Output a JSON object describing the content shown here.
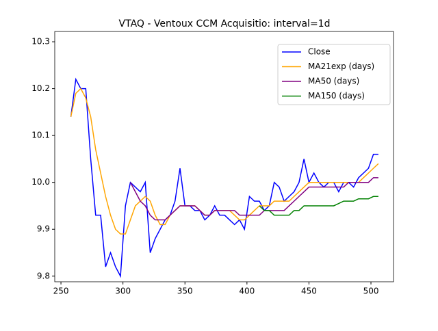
{
  "chart_data": {
    "type": "line",
    "title": "VTAQ - Ventoux CCM Acquisitio: interval=1d",
    "x": [
      258,
      262,
      266,
      270,
      274,
      278,
      282,
      286,
      290,
      294,
      298,
      302,
      306,
      310,
      314,
      318,
      322,
      326,
      330,
      334,
      338,
      342,
      346,
      350,
      354,
      358,
      362,
      366,
      370,
      374,
      378,
      382,
      386,
      390,
      394,
      398,
      402,
      406,
      410,
      414,
      418,
      422,
      426,
      430,
      434,
      438,
      442,
      446,
      450,
      454,
      458,
      462,
      466,
      470,
      474,
      478,
      482,
      486,
      490,
      494,
      498,
      502,
      506
    ],
    "series": [
      {
        "name": "Close",
        "color": "#0000ff",
        "values": [
          10.14,
          10.22,
          10.2,
          10.2,
          10.05,
          9.93,
          9.93,
          9.82,
          9.85,
          9.82,
          9.8,
          9.95,
          10.0,
          9.99,
          9.98,
          10.0,
          9.85,
          9.88,
          9.9,
          9.92,
          9.93,
          9.96,
          10.03,
          9.95,
          9.95,
          9.94,
          9.94,
          9.92,
          9.93,
          9.95,
          9.93,
          9.93,
          9.92,
          9.91,
          9.92,
          9.9,
          9.97,
          9.96,
          9.96,
          9.94,
          9.95,
          10.0,
          9.99,
          9.96,
          9.97,
          9.98,
          10.0,
          10.05,
          10.0,
          10.02,
          10.0,
          9.99,
          10.0,
          10.0,
          9.98,
          10.0,
          10.0,
          9.99,
          10.01,
          10.02,
          10.03,
          10.06,
          10.06
        ]
      },
      {
        "name": "MA21exp (days)",
        "color": "#ffa500",
        "values": [
          10.14,
          10.19,
          10.2,
          10.18,
          10.14,
          10.07,
          10.02,
          9.97,
          9.93,
          9.9,
          9.89,
          9.89,
          9.92,
          9.95,
          9.96,
          9.97,
          9.96,
          9.93,
          9.91,
          9.91,
          9.93,
          9.94,
          9.95,
          9.95,
          9.95,
          9.95,
          9.94,
          9.93,
          9.93,
          9.94,
          9.94,
          9.94,
          9.94,
          9.93,
          9.92,
          9.92,
          9.93,
          9.94,
          9.95,
          9.95,
          9.95,
          9.96,
          9.96,
          9.96,
          9.96,
          9.97,
          9.98,
          9.99,
          10.0,
          10.0,
          10.0,
          10.0,
          10.0,
          10.0,
          10.0,
          10.0,
          10.0,
          10.0,
          10.0,
          10.01,
          10.02,
          10.03,
          10.04
        ]
      },
      {
        "name": "MA50 (days)",
        "color": "#800080",
        "values": [
          null,
          null,
          null,
          null,
          null,
          null,
          null,
          null,
          null,
          null,
          null,
          null,
          10.0,
          9.98,
          9.96,
          9.95,
          9.93,
          9.92,
          9.92,
          9.92,
          9.93,
          9.94,
          9.95,
          9.95,
          9.95,
          9.95,
          9.94,
          9.93,
          9.93,
          9.94,
          9.94,
          9.94,
          9.94,
          9.94,
          9.93,
          9.93,
          9.93,
          9.93,
          9.93,
          9.94,
          9.94,
          9.94,
          9.94,
          9.94,
          9.95,
          9.96,
          9.97,
          9.98,
          9.99,
          9.99,
          9.99,
          9.99,
          9.99,
          9.99,
          9.99,
          9.99,
          10.0,
          10.0,
          10.0,
          10.0,
          10.0,
          10.01,
          10.01
        ]
      },
      {
        "name": "MA150 (days)",
        "color": "#008000",
        "values": [
          null,
          null,
          null,
          null,
          null,
          null,
          null,
          null,
          null,
          null,
          null,
          null,
          null,
          null,
          null,
          null,
          null,
          null,
          null,
          null,
          null,
          null,
          null,
          null,
          null,
          null,
          null,
          null,
          null,
          null,
          null,
          null,
          null,
          null,
          null,
          null,
          null,
          null,
          9.95,
          9.94,
          9.94,
          9.93,
          9.93,
          9.93,
          9.93,
          9.94,
          9.94,
          9.95,
          9.95,
          9.95,
          9.95,
          9.95,
          9.95,
          9.95,
          9.955,
          9.96,
          9.96,
          9.96,
          9.965,
          9.965,
          9.965,
          9.97,
          9.97
        ]
      }
    ],
    "xlim": [
      245.0,
      518.2
    ],
    "ylim": [
      9.788,
      10.322
    ],
    "xticks": [
      250,
      300,
      350,
      400,
      450,
      500
    ],
    "yticks": [
      9.8,
      9.9,
      {
        "value": 10,
        "label": "10.0"
      },
      10.1,
      10.2,
      10.3
    ],
    "legend": "upper right"
  }
}
